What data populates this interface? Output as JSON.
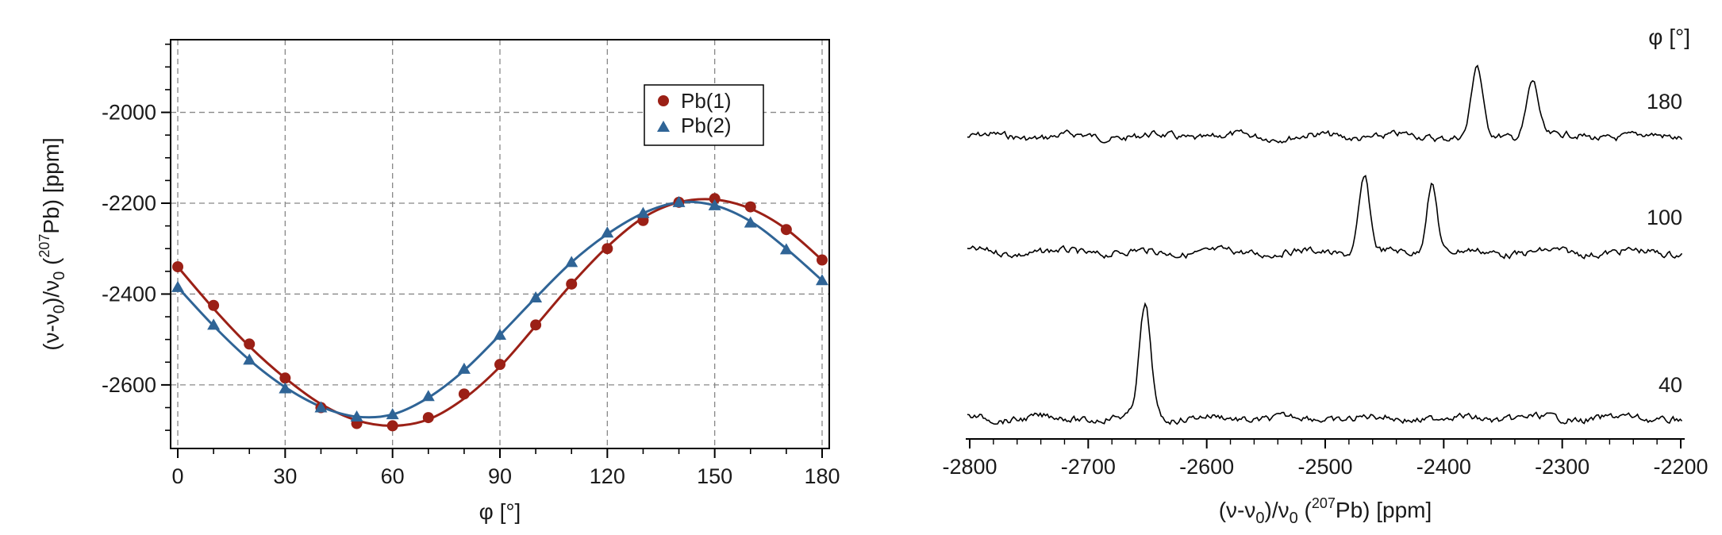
{
  "chart_data": [
    {
      "type": "scatter",
      "xlabel": "φ [°]",
      "ylabel": "(ν-ν0)/ν0 (207Pb) [ppm]",
      "ylabel_parts": [
        "(ν-ν",
        "0",
        ")/ν",
        "0",
        " (",
        "207",
        "Pb) [ppm]"
      ],
      "xlim": [
        -2,
        182
      ],
      "ylim": [
        -2740,
        -1840
      ],
      "x_ticks": [
        0,
        30,
        60,
        90,
        120,
        150,
        180
      ],
      "x_tick_labels": [
        "0",
        "30",
        "60",
        "90",
        "120",
        "150",
        "180"
      ],
      "y_ticks": [
        -2600,
        -2400,
        -2200,
        -2000
      ],
      "y_tick_labels": [
        "-2600",
        "-2400",
        "-2200",
        "-2000"
      ],
      "grid": true,
      "legend_position": "top-right",
      "series": [
        {
          "name": "Pb(1)",
          "marker": "circle",
          "color": "#9b2016",
          "x": [
            0,
            10,
            20,
            30,
            40,
            50,
            60,
            70,
            80,
            90,
            100,
            110,
            120,
            130,
            140,
            150,
            160,
            170,
            180
          ],
          "y": [
            -2340,
            -2425,
            -2510,
            -2585,
            -2650,
            -2685,
            -2690,
            -2672,
            -2620,
            -2555,
            -2468,
            -2378,
            -2300,
            -2238,
            -2198,
            -2190,
            -2208,
            -2258,
            -2325
          ],
          "fit": [
            -2340,
            -2432,
            -2515,
            -2585,
            -2642,
            -2678,
            -2690,
            -2676,
            -2630,
            -2560,
            -2470,
            -2378,
            -2296,
            -2232,
            -2198,
            -2192,
            -2212,
            -2257,
            -2325
          ]
        },
        {
          "name": "Pb(2)",
          "marker": "triangle",
          "color": "#2f6496",
          "x": [
            0,
            10,
            20,
            30,
            40,
            50,
            60,
            70,
            80,
            90,
            100,
            110,
            120,
            130,
            140,
            150,
            160,
            170,
            180
          ],
          "y": [
            -2385,
            -2468,
            -2545,
            -2608,
            -2650,
            -2670,
            -2665,
            -2625,
            -2565,
            -2490,
            -2408,
            -2330,
            -2265,
            -2222,
            -2198,
            -2205,
            -2243,
            -2302,
            -2370
          ],
          "fit": [
            -2385,
            -2470,
            -2545,
            -2605,
            -2648,
            -2670,
            -2665,
            -2628,
            -2568,
            -2490,
            -2408,
            -2330,
            -2268,
            -2222,
            -2198,
            -2205,
            -2240,
            -2300,
            -2370
          ]
        }
      ]
    },
    {
      "type": "line",
      "xlabel": "(ν-ν0)/ν0 (207Pb) [ppm]",
      "xlabel_parts": [
        "(ν-ν",
        "0",
        ")/ν",
        "0",
        " (",
        "207",
        "Pb) [ppm]"
      ],
      "xlim": [
        -2800,
        -2200
      ],
      "x_ticks": [
        -2800,
        -2700,
        -2600,
        -2500,
        -2400,
        -2300,
        -2200
      ],
      "x_tick_labels": [
        "-2800",
        "-2700",
        "-2600",
        "-2500",
        "-2400",
        "-2300",
        "-2200"
      ],
      "offset_label_title": "φ [°]",
      "series": [
        {
          "name": "180",
          "peaks": [
            {
              "x": -2372,
              "height": 88,
              "width": 4.5
            },
            {
              "x": -2325,
              "height": 72,
              "width": 5
            }
          ]
        },
        {
          "name": "100",
          "peaks": [
            {
              "x": -2467,
              "height": 95,
              "width": 4.5
            },
            {
              "x": -2410,
              "height": 88,
              "width": 4.5
            }
          ]
        },
        {
          "name": "40",
          "peaks": [
            {
              "x": -2652,
              "height": 140,
              "width": 5
            }
          ]
        }
      ]
    }
  ]
}
